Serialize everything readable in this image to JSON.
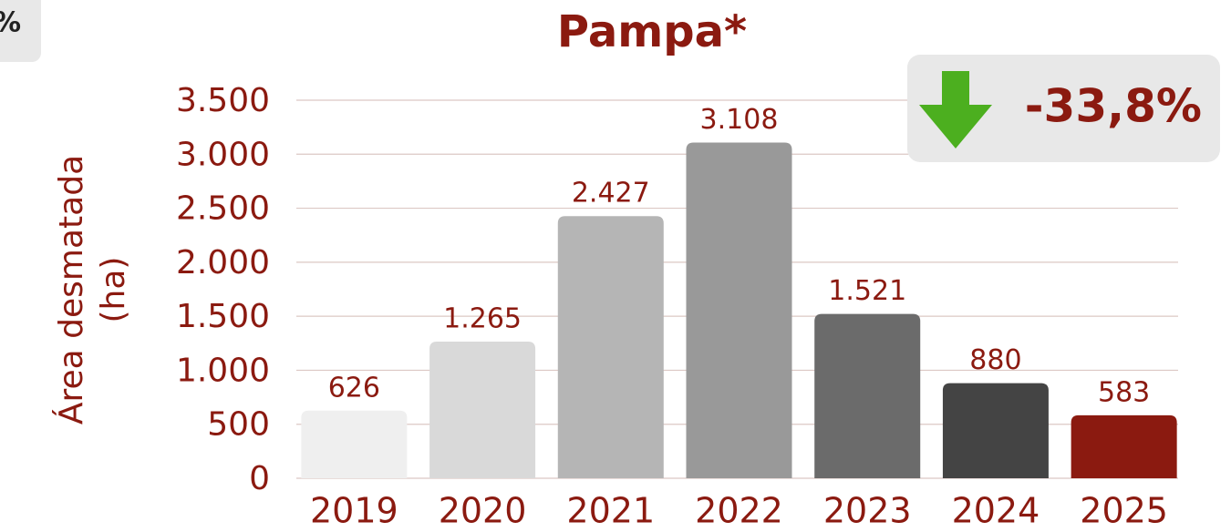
{
  "chart_data": {
    "type": "bar",
    "title": "Pampa*",
    "corner_label": "%",
    "y_label": [
      "Área desmatada",
      "(ha)"
    ],
    "annotation": "-33,8%",
    "categories": [
      "2019",
      "2020",
      "2021",
      "2022",
      "2023",
      "2024",
      "2025"
    ],
    "values": [
      626,
      1265,
      2427,
      3108,
      1521,
      880,
      583
    ],
    "value_labels": [
      "626",
      "1.265",
      "2.427",
      "3.108",
      "1.521",
      "880",
      "583"
    ],
    "colors": [
      "#efefef",
      "#d9d9d9",
      "#b5b5b5",
      "#999999",
      "#6b6b6b",
      "#444444",
      "#8b1a10"
    ],
    "ylim": [
      0,
      3500
    ],
    "yticks": [
      0,
      500,
      {
        "value": 1000,
        "label": "1.000"
      },
      {
        "value": 1500,
        "label": "1.500"
      },
      {
        "value": 2000,
        "label": "2.000"
      },
      {
        "value": 2500,
        "label": "2.500"
      },
      {
        "value": 3000,
        "label": "3.000"
      },
      {
        "value": 3500,
        "label": "3.500"
      }
    ],
    "grid": true
  }
}
